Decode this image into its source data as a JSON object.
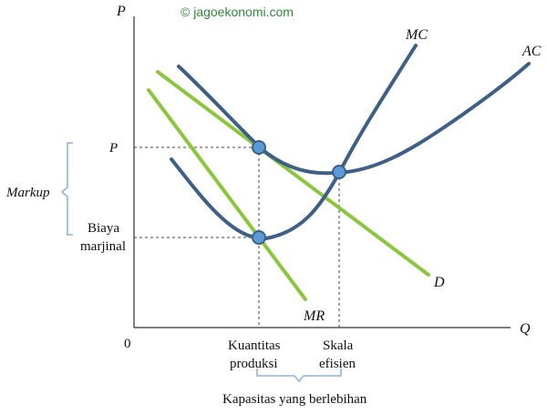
{
  "colors": {
    "blue_curves": "#3e5f86",
    "green_lines": "#8cc63e",
    "point_fill": "#5b9bd5",
    "point_stroke": "#3e5f86",
    "bracket": "#8fb3d6",
    "copyright": "#2e8b3a"
  },
  "copyright": "© jagoekonomi.com",
  "axes": {
    "y_label": "P",
    "x_label": "Q",
    "origin": "0"
  },
  "curves": {
    "mc": "MC",
    "ac": "AC",
    "demand": "D",
    "mr": "MR"
  },
  "y_labels": {
    "price": "P",
    "biaya_line1": "Biaya",
    "biaya_line2": "marjinal"
  },
  "markup": "Markup",
  "x_labels": {
    "kuantitas_line1": "Kuantitas",
    "kuantitas_line2": "produksi",
    "skala_line1": "Skala",
    "skala_line2": "efisien"
  },
  "kapasitas": "Kapasitas yang berlebihan"
}
